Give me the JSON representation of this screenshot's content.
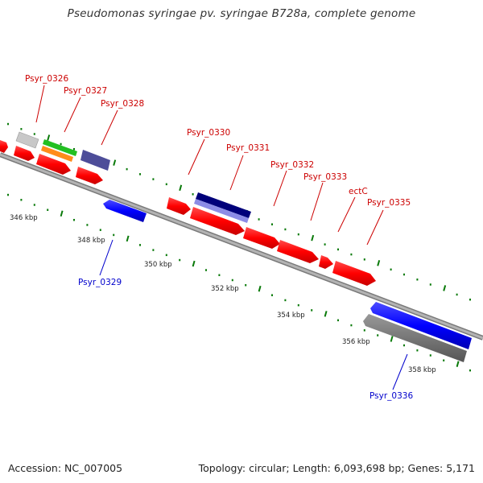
{
  "title": "Pseudomonas syringae pv. syringae B728a, complete genome",
  "footer": {
    "accession": "Accession: NC_007005",
    "summary": "Topology: circular; Length: 6,093,698 bp; Genes: 5,171"
  },
  "colors": {
    "forward_gene": "#ff0000",
    "reverse_gene": "#0000ff",
    "backbone": "#999999",
    "tick": "#006400",
    "label_forward": "#cc0000",
    "label_reverse": "#0000cc"
  },
  "scale_labels": [
    "346 kbp",
    "348 kbp",
    "350 kbp",
    "352 kbp",
    "354 kbp",
    "356 kbp",
    "358 kbp"
  ],
  "forward_labels": [
    "Psyr_0326",
    "Psyr_0327",
    "Psyr_0328",
    "Psyr_0330",
    "Psyr_0331",
    "Psyr_0332",
    "Psyr_0333",
    "ectC",
    "Psyr_0335"
  ],
  "reverse_labels": [
    "Psyr_0329",
    "Psyr_0336"
  ]
}
